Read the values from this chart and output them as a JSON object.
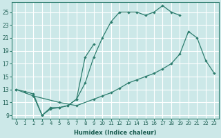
{
  "xlabel": "Humidex (Indice chaleur)",
  "bg_color": "#cce8e8",
  "grid_color": "#ffffff",
  "line_color": "#2d7d6e",
  "xlim_min": -0.5,
  "xlim_max": 23.5,
  "ylim_min": 8.5,
  "ylim_max": 26.5,
  "xticks": [
    0,
    1,
    2,
    3,
    4,
    5,
    6,
    7,
    8,
    9,
    10,
    11,
    12,
    13,
    14,
    15,
    16,
    17,
    18,
    19,
    20,
    21,
    22,
    23
  ],
  "yticks": [
    9,
    11,
    13,
    15,
    17,
    19,
    21,
    23,
    25
  ],
  "curve1_x": [
    0,
    1,
    2,
    3,
    4,
    5,
    6,
    7,
    8,
    9,
    10,
    11,
    12,
    13,
    14,
    15,
    16,
    17,
    18,
    19
  ],
  "curve1_y": [
    13,
    12.7,
    12.3,
    9,
    10.2,
    10.2,
    10.5,
    11.5,
    14,
    18,
    21,
    23.5,
    25,
    25,
    25,
    24.5,
    25,
    26,
    25,
    24.5
  ],
  "curve2_x": [
    0,
    2,
    5,
    7,
    9,
    10,
    11,
    12,
    13,
    14,
    15,
    16,
    17,
    18,
    19,
    20,
    21,
    22,
    23
  ],
  "curve2_y": [
    13,
    12,
    11,
    10.5,
    11.5,
    12,
    12.5,
    13.2,
    14,
    14.5,
    15,
    15.5,
    16.2,
    17,
    18.5,
    22,
    21,
    17.5,
    15.5
  ],
  "curve3_x": [
    2,
    3,
    4,
    5,
    6,
    7,
    8,
    9
  ],
  "curve3_y": [
    12,
    9,
    10,
    10.2,
    10.5,
    11.5,
    18,
    20
  ]
}
